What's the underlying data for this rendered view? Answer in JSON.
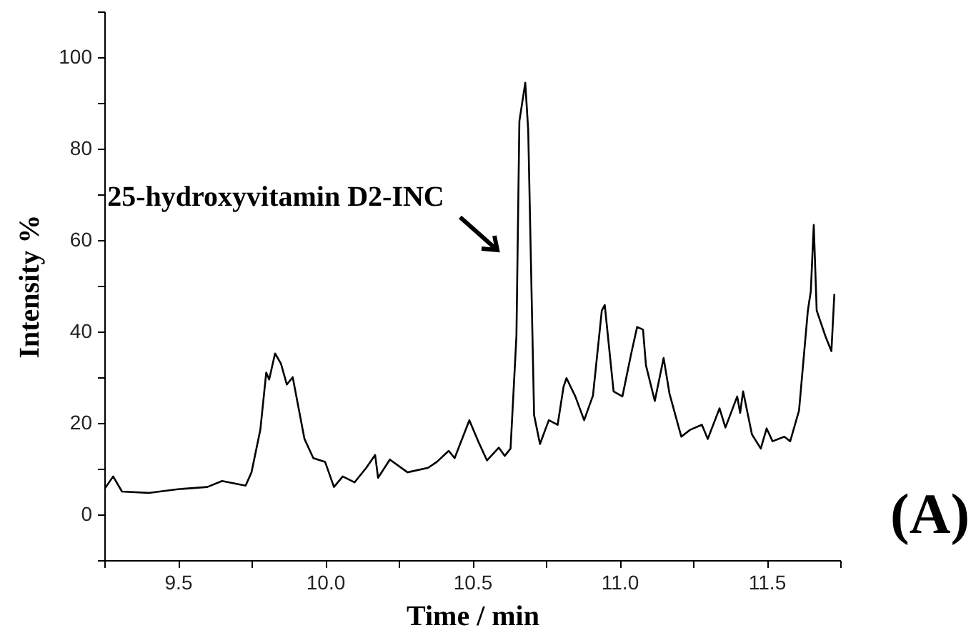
{
  "chart_data": {
    "type": "line",
    "xlabel": "Time / min",
    "ylabel": "Intensity %",
    "x": [
      9.25,
      9.28,
      9.31,
      9.4,
      9.5,
      9.6,
      9.65,
      9.73,
      9.75,
      9.78,
      9.8,
      9.81,
      9.83,
      9.85,
      9.87,
      9.89,
      9.93,
      9.96,
      10.0,
      10.03,
      10.06,
      10.1,
      10.14,
      10.17,
      10.18,
      10.22,
      10.28,
      10.35,
      10.38,
      10.42,
      10.44,
      10.49,
      10.52,
      10.55,
      10.59,
      10.61,
      10.63,
      10.65,
      10.66,
      10.68,
      10.69,
      10.71,
      10.73,
      10.76,
      10.79,
      10.81,
      10.82,
      10.85,
      10.88,
      10.91,
      10.94,
      10.95,
      10.98,
      11.01,
      11.04,
      11.06,
      11.08,
      11.09,
      11.12,
      11.15,
      11.17,
      11.21,
      11.24,
      11.28,
      11.3,
      11.34,
      11.36,
      11.4,
      11.41,
      11.42,
      11.45,
      11.48,
      11.5,
      11.52,
      11.56,
      11.58,
      11.61,
      11.64,
      11.65,
      11.66,
      11.67,
      11.7,
      11.72,
      11.73
    ],
    "series": [
      {
        "color": "#000000",
        "values": [
          5.5,
          8.3,
          5,
          4.7,
          5.5,
          6,
          7.3,
          6.3,
          9.2,
          18.5,
          31,
          29.5,
          35.2,
          33,
          28.4,
          30,
          16.5,
          12.3,
          11.5,
          6,
          8.3,
          7,
          10.2,
          13,
          8,
          12,
          9.2,
          10.2,
          11.5,
          13.9,
          12.3,
          20.6,
          16,
          11.8,
          14.6,
          12.8,
          14.4,
          39,
          86,
          94.4,
          84,
          21.7,
          15.4,
          20.6,
          19.6,
          27.9,
          29.8,
          25.8,
          20.6,
          26,
          44.6,
          45.8,
          26.9,
          25.8,
          35.2,
          41,
          40.4,
          32.6,
          24.8,
          34.2,
          26.4,
          17,
          18.5,
          19.6,
          16.5,
          23.2,
          19,
          25.8,
          22.2,
          26.9,
          17.5,
          14.4,
          18.8,
          16,
          17,
          16,
          22.7,
          44.6,
          48.8,
          63.3,
          44.6,
          38.9,
          35.7,
          48.2
        ]
      }
    ],
    "xlim": [
      9.25,
      11.75
    ],
    "xticks": [
      {
        "value": 9.25,
        "label": null
      },
      9.5,
      {
        "value": 9.75,
        "label": null
      },
      {
        "value": 10,
        "label": "10.0"
      },
      {
        "value": 10.25,
        "label": null
      },
      10.5,
      {
        "value": 10.75,
        "label": null
      },
      {
        "value": 11,
        "label": "11.0"
      },
      {
        "value": 11.25,
        "label": null
      },
      11.5,
      {
        "value": 11.75,
        "label": null
      }
    ],
    "ylim": [
      -10,
      110
    ],
    "yticks": [
      {
        "value": -10,
        "label": null
      },
      0,
      {
        "value": 10,
        "label": null
      },
      20,
      {
        "value": 30,
        "label": null
      },
      40,
      {
        "value": 50,
        "label": null
      },
      60,
      {
        "value": 70,
        "label": null
      },
      80,
      {
        "value": 90,
        "label": null
      },
      100,
      {
        "value": 110,
        "label": null
      }
    ],
    "grid": false,
    "marker": "none",
    "line_style": "solid",
    "annotations": [
      "25-hydroxyvitamin D2-INC",
      "(A)"
    ]
  }
}
